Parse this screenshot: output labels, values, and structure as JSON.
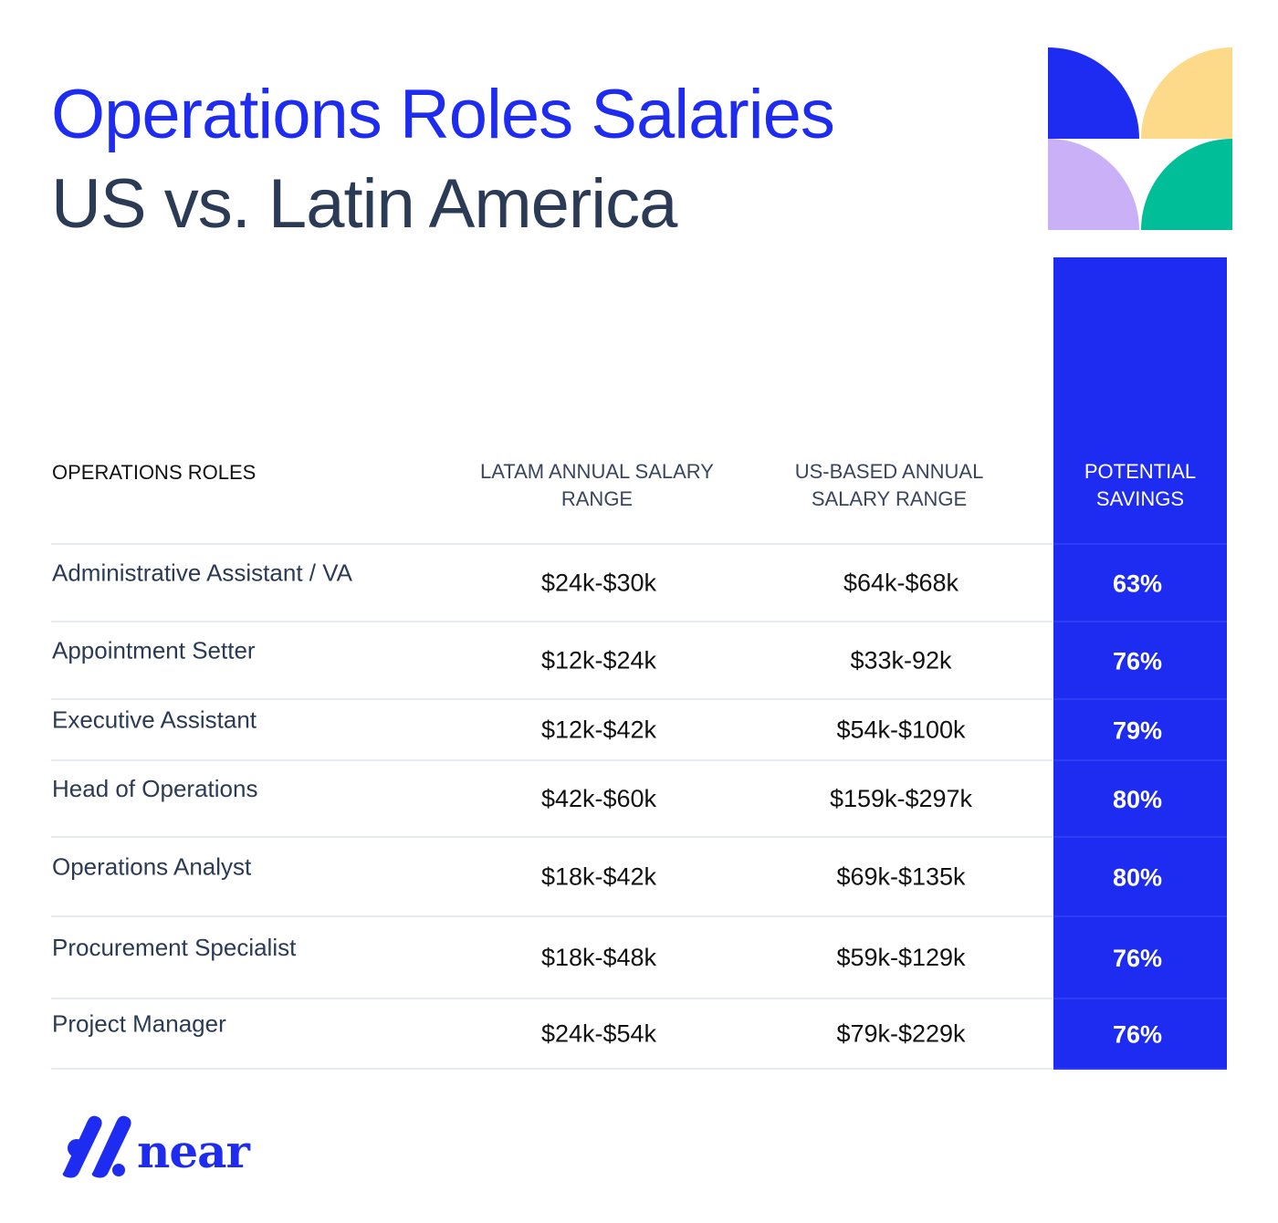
{
  "title": {
    "line1": "Operations Roles Salaries",
    "line2": "US vs. Latin America"
  },
  "colors": {
    "accent_blue": "#1d2cf0",
    "text_dark": "#2b3a55",
    "deco_yellow": "#fdd98a",
    "deco_lilac": "#c9b0f7",
    "deco_teal": "#00bf98"
  },
  "brand": {
    "name": "near"
  },
  "chart_data": {
    "type": "table",
    "columns": [
      "OPERATIONS ROLES",
      "LATAM ANNUAL SALARY RANGE",
      "US-BASED ANNUAL SALARY RANGE",
      "POTENTIAL SAVINGS"
    ],
    "rows": [
      {
        "role": "Administrative Assistant / VA",
        "latam": "$24k-$30k",
        "us": "$64k-$68k",
        "savings": "63%"
      },
      {
        "role": "Appointment Setter",
        "latam": "$12k-$24k",
        "us": "$33k-92k",
        "savings": "76%"
      },
      {
        "role": "Executive Assistant",
        "latam": "$12k-$42k",
        "us": "$54k-$100k",
        "savings": "79%"
      },
      {
        "role": "Head of Operations",
        "latam": "$42k-$60k",
        "us": "$159k-$297k",
        "savings": "80%"
      },
      {
        "role": "Operations Analyst",
        "latam": "$18k-$42k",
        "us": "$69k-$135k",
        "savings": "80%"
      },
      {
        "role": "Procurement Specialist",
        "latam": "$18k-$48k",
        "us": "$59k-$129k",
        "savings": "76%"
      },
      {
        "role": "Project Manager",
        "latam": "$24k-$54k",
        "us": "$79k-$229k",
        "savings": "76%"
      }
    ]
  }
}
